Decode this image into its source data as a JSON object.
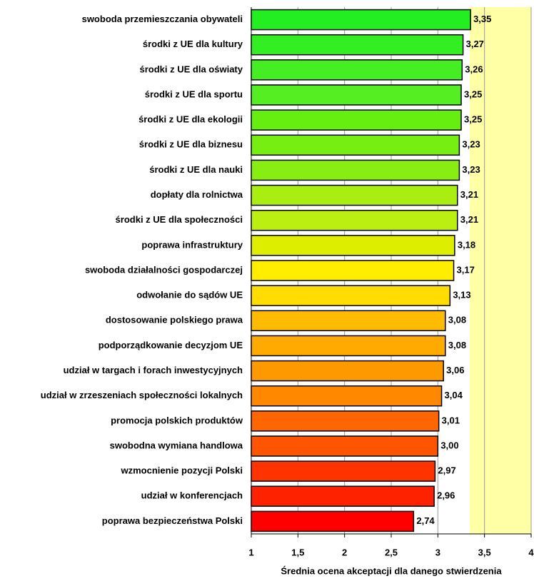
{
  "chart_data": {
    "type": "bar",
    "orientation": "horizontal",
    "categories": [
      "swoboda przemieszczania obywateli",
      "środki z UE dla kultury",
      "środki z UE dla oświaty",
      "środki z UE dla sportu",
      "środki z UE dla ekologii",
      "środki z UE dla biznesu",
      "środki z UE dla nauki",
      "dopłaty dla rolnictwa",
      "środki z UE dla społeczności",
      "poprawa infrastruktury",
      "swoboda działalności gospodarczej",
      "odwołanie do sądów UE",
      "dostosowanie polskiego prawa",
      "podporządkowanie decyzjom UE",
      "udział w targach i forach inwestycyjnych",
      "udział w zrzeszeniach społeczności lokalnych",
      "promocja polskich produktów",
      "swobodna wymiana handlowa",
      "wzmocnienie pozycji Polski",
      "udział w konferencjach",
      "poprawa bezpieczeństwa Polski"
    ],
    "values": [
      3.35,
      3.27,
      3.26,
      3.25,
      3.25,
      3.23,
      3.23,
      3.21,
      3.21,
      3.18,
      3.17,
      3.13,
      3.08,
      3.08,
      3.06,
      3.04,
      3.01,
      3.0,
      2.97,
      2.96,
      2.74
    ],
    "value_labels": [
      "3,35",
      "3,27",
      "3,26",
      "3,25",
      "3,25",
      "3,23",
      "3,23",
      "3,21",
      "3,21",
      "3,18",
      "3,17",
      "3,13",
      "3,08",
      "3,08",
      "3,06",
      "3,04",
      "3,01",
      "3,00",
      "2,97",
      "2,96",
      "2,74"
    ],
    "colors": [
      "#22ee22",
      "#33ee22",
      "#44ee22",
      "#55ee22",
      "#66ee11",
      "#77ee11",
      "#88ee11",
      "#aaee11",
      "#bbee11",
      "#ddee00",
      "#ffee00",
      "#ffdd00",
      "#ffbb00",
      "#ffaa00",
      "#ff9900",
      "#ff8800",
      "#ff6600",
      "#ff5500",
      "#ff3300",
      "#ff2200",
      "#ff0000"
    ],
    "xlabel": "Średnia ocena akceptacji dla danego stwierdzenia",
    "xlim": [
      1,
      4
    ],
    "xticks": [
      1,
      {
        "value": 1.5,
        "label": "1,5"
      },
      2,
      {
        "value": 2.5,
        "label": "2,5"
      },
      3,
      {
        "value": 3.5,
        "label": "3,5"
      },
      4
    ],
    "grid": true
  }
}
